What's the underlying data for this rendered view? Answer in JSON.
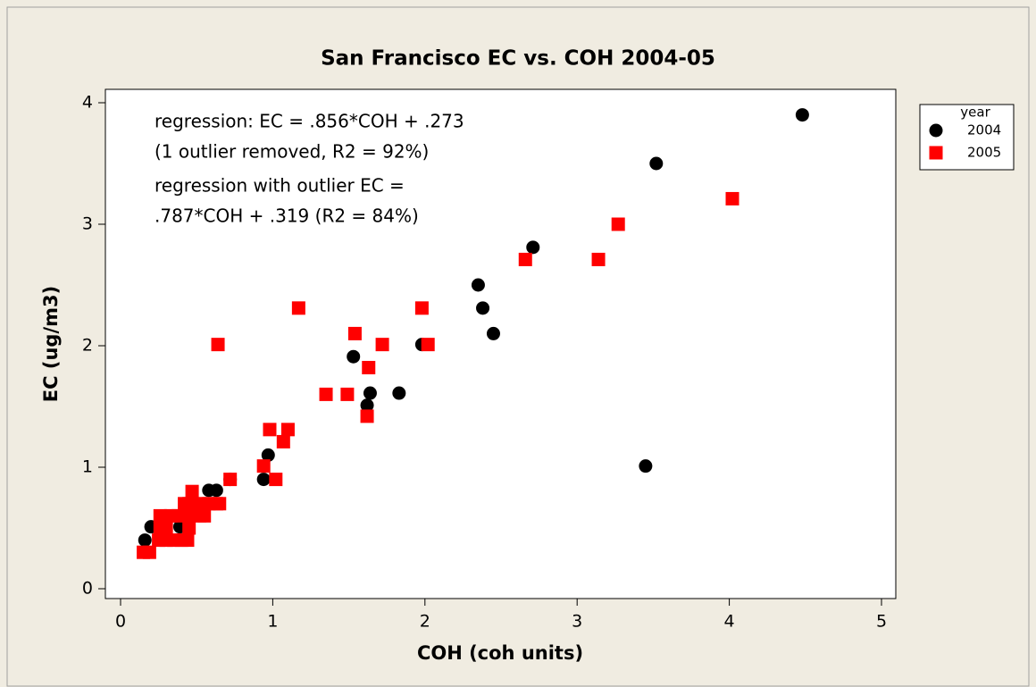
{
  "chart_data": {
    "type": "scatter",
    "title": "San Francisco EC vs. COH 2004-05",
    "x_label": "COH (coh units)",
    "y_label": "EC (ug/m3)",
    "legend_title": "year",
    "legend": "right",
    "annotations": [
      "regression: EC = .856*COH + .273",
      "(1 outlier removed, R2 = 92%)",
      "regression with outlier EC =",
      ".787*COH + .319 (R2 = 84%)"
    ],
    "xlim": [
      0,
      5
    ],
    "ylim": [
      0,
      4
    ],
    "xticks": [
      0,
      1,
      2,
      3,
      4,
      5
    ],
    "yticks": [
      0,
      1,
      2,
      3,
      4
    ],
    "series": [
      {
        "name": "2004",
        "color": "#000000",
        "marker": "circle",
        "x": [
          4.48,
          3.52,
          2.71,
          2.35,
          2.38,
          2.45,
          1.98,
          1.53,
          1.83,
          1.64,
          1.62,
          3.45,
          0.97,
          0.94,
          0.72,
          0.63,
          0.58,
          0.39,
          0.2,
          0.16
        ],
        "values": [
          3.9,
          3.5,
          2.81,
          2.5,
          2.31,
          2.1,
          2.01,
          1.91,
          1.61,
          1.61,
          1.51,
          1.01,
          1.1,
          0.9,
          0.9,
          0.81,
          0.81,
          0.51,
          0.51,
          0.4
        ]
      },
      {
        "name": "2005",
        "color": "#ff0000",
        "marker": "square",
        "x": [
          4.02,
          3.27,
          2.66,
          3.14,
          1.17,
          1.98,
          1.54,
          1.72,
          2.02,
          0.64,
          1.63,
          1.35,
          1.49,
          1.62,
          0.98,
          1.1,
          1.07,
          0.94,
          1.02,
          0.72,
          0.47,
          0.42,
          0.45,
          0.53,
          0.58,
          0.63,
          0.65,
          0.26,
          0.33,
          0.38,
          0.45,
          0.52,
          0.55,
          0.26,
          0.3,
          0.45,
          0.25,
          0.3,
          0.35,
          0.4,
          0.44,
          0.15,
          0.19
        ],
        "values": [
          3.21,
          3.0,
          2.71,
          2.71,
          2.31,
          2.31,
          2.1,
          2.01,
          2.01,
          2.01,
          1.82,
          1.6,
          1.6,
          1.42,
          1.31,
          1.31,
          1.21,
          1.01,
          0.9,
          0.9,
          0.8,
          0.7,
          0.7,
          0.7,
          0.7,
          0.7,
          0.7,
          0.6,
          0.6,
          0.6,
          0.6,
          0.6,
          0.6,
          0.5,
          0.5,
          0.5,
          0.4,
          0.4,
          0.4,
          0.4,
          0.4,
          0.3,
          0.3
        ]
      }
    ]
  }
}
